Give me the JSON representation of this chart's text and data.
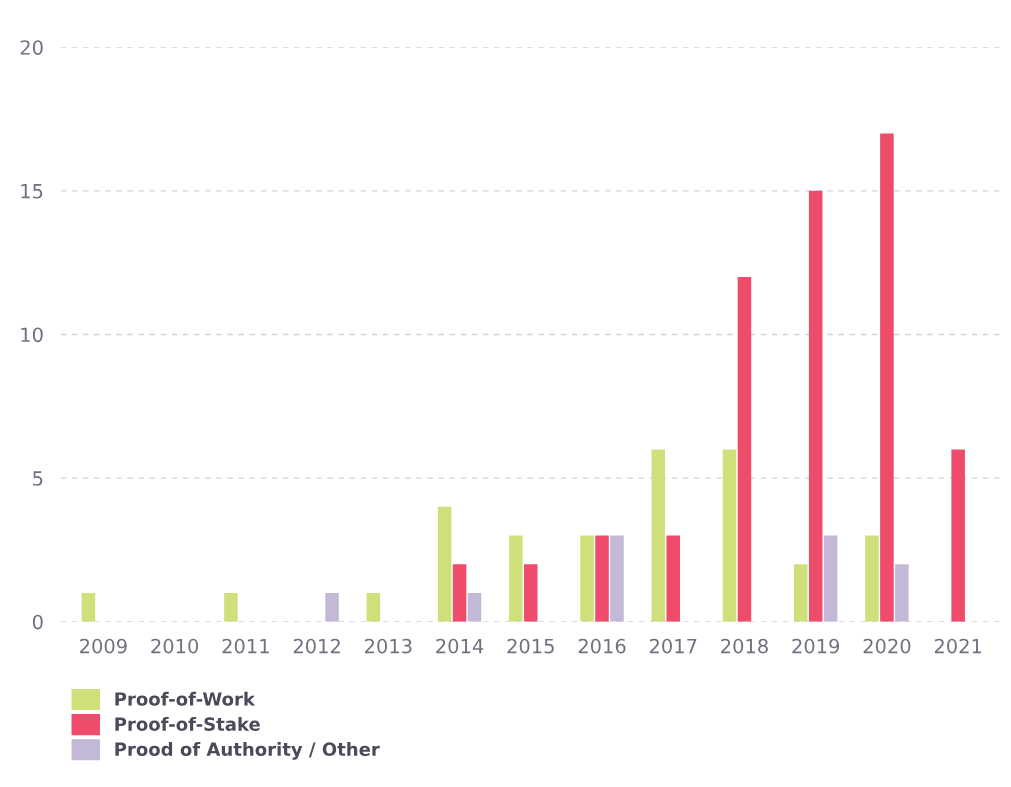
{
  "chart_data": {
    "type": "bar",
    "categories": [
      "2009",
      "2010",
      "2011",
      "2012",
      "2013",
      "2014",
      "2015",
      "2016",
      "2017",
      "2018",
      "2019",
      "2020",
      "2021"
    ],
    "series": [
      {
        "name": "Proof-of-Work",
        "color": "#cfe07a",
        "values": [
          1,
          0,
          1,
          0,
          1,
          4,
          3,
          3,
          6,
          6,
          2,
          3,
          0
        ]
      },
      {
        "name": "Proof-of-Stake",
        "color": "#ef4b6a",
        "values": [
          0,
          0,
          0,
          0,
          0,
          2,
          2,
          3,
          3,
          12,
          15,
          17,
          6
        ]
      },
      {
        "name": "Prood of Authority / Other",
        "color": "#c3b8d6",
        "values": [
          0,
          0,
          0,
          1,
          0,
          1,
          0,
          3,
          0,
          0,
          3,
          2,
          0
        ]
      }
    ],
    "ylim": [
      0,
      20
    ],
    "yticks": [
      0,
      5,
      10,
      15,
      20
    ],
    "grid": "y",
    "legend": "bottom left"
  }
}
